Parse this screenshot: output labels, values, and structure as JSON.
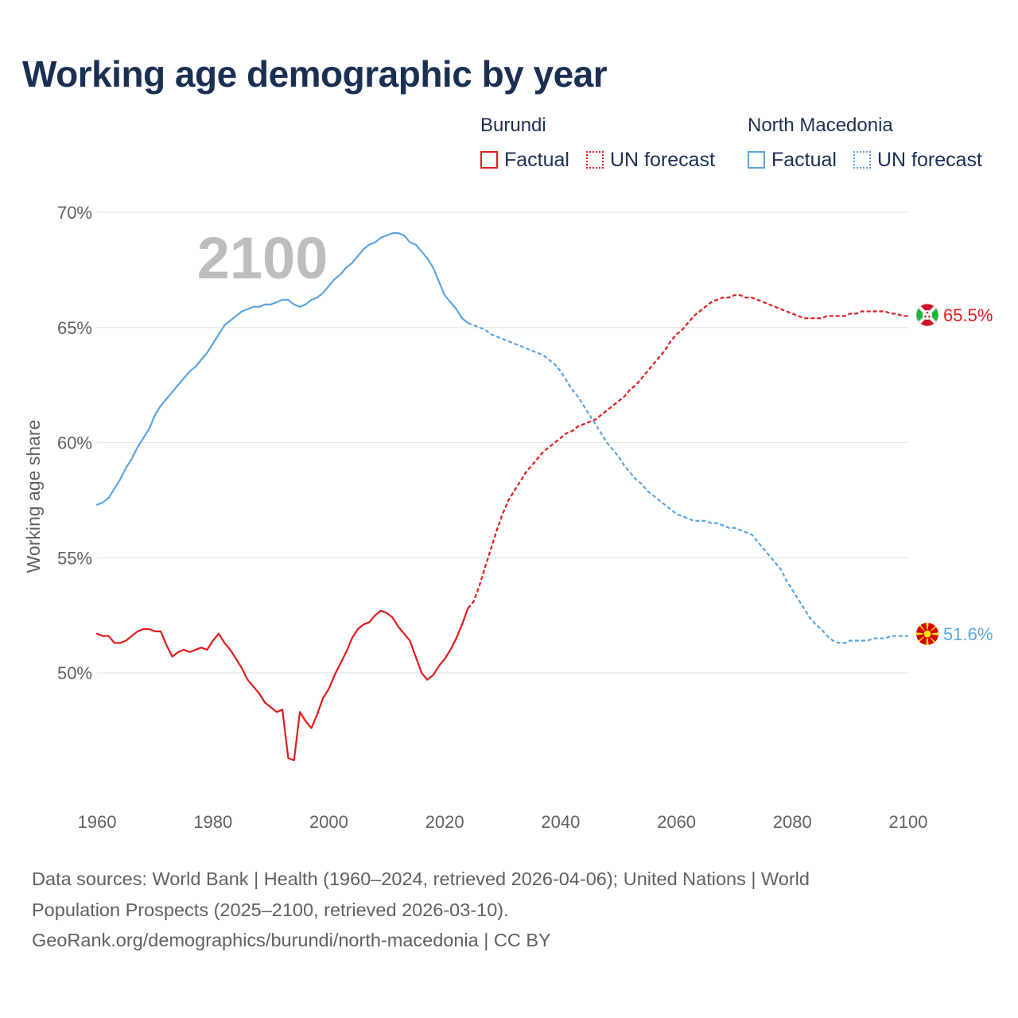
{
  "title": "Working age demographic by year",
  "year_label": "2100",
  "legend": [
    {
      "country": "Burundi",
      "color": "#e41a1c",
      "items": [
        {
          "label": "Factual",
          "style": "solid"
        },
        {
          "label": "UN forecast",
          "style": "dotted"
        }
      ]
    },
    {
      "country": "North Macedonia",
      "color": "#5ba4e2",
      "items": [
        {
          "label": "Factual",
          "style": "solid"
        },
        {
          "label": "UN forecast",
          "style": "dotted"
        }
      ]
    }
  ],
  "footer": {
    "line1": "Data sources: World Bank | Health (1960–2024, retrieved 2026-04-06); United Nations | World",
    "line2": "Population Prospects (2025–2100, retrieved 2026-03-10).",
    "line3": "GeoRank.org/demographics/burundi/north-macedonia | CC BY"
  },
  "chart_data": {
    "type": "line",
    "title": "Working age demographic by year",
    "xlabel": "",
    "ylabel": "Working age share",
    "xlim": [
      1960,
      2100
    ],
    "ylim": [
      44.5,
      70
    ],
    "x_ticks": [
      1960,
      1980,
      2000,
      2020,
      2040,
      2060,
      2080,
      2100
    ],
    "y_ticks": [
      50,
      55,
      60,
      65,
      70
    ],
    "y_tick_labels": [
      "50%",
      "55%",
      "60%",
      "65%",
      "70%"
    ],
    "grid": true,
    "series": [
      {
        "name": "Burundi",
        "color": "#e41a1c",
        "end_label": "65.5%",
        "end_icon": "burundi-flag",
        "factual": [
          [
            1960,
            51.7
          ],
          [
            1961,
            51.6
          ],
          [
            1962,
            51.6
          ],
          [
            1963,
            51.3
          ],
          [
            1964,
            51.3
          ],
          [
            1965,
            51.4
          ],
          [
            1966,
            51.6
          ],
          [
            1967,
            51.8
          ],
          [
            1968,
            51.9
          ],
          [
            1969,
            51.9
          ],
          [
            1970,
            51.8
          ],
          [
            1971,
            51.8
          ],
          [
            1972,
            51.2
          ],
          [
            1973,
            50.7
          ],
          [
            1974,
            50.9
          ],
          [
            1975,
            51.0
          ],
          [
            1976,
            50.9
          ],
          [
            1977,
            51.0
          ],
          [
            1978,
            51.1
          ],
          [
            1979,
            51.0
          ],
          [
            1980,
            51.4
          ],
          [
            1981,
            51.7
          ],
          [
            1982,
            51.3
          ],
          [
            1983,
            51.0
          ],
          [
            1984,
            50.6
          ],
          [
            1985,
            50.2
          ],
          [
            1986,
            49.7
          ],
          [
            1987,
            49.4
          ],
          [
            1988,
            49.1
          ],
          [
            1989,
            48.7
          ],
          [
            1990,
            48.5
          ],
          [
            1991,
            48.3
          ],
          [
            1992,
            48.4
          ],
          [
            1993,
            46.3
          ],
          [
            1994,
            46.2
          ],
          [
            1995,
            48.3
          ],
          [
            1996,
            47.9
          ],
          [
            1997,
            47.6
          ],
          [
            1998,
            48.2
          ],
          [
            1999,
            48.9
          ],
          [
            2000,
            49.3
          ],
          [
            2001,
            49.9
          ],
          [
            2002,
            50.4
          ],
          [
            2003,
            50.9
          ],
          [
            2004,
            51.5
          ],
          [
            2005,
            51.9
          ],
          [
            2006,
            52.1
          ],
          [
            2007,
            52.2
          ],
          [
            2008,
            52.5
          ],
          [
            2009,
            52.7
          ],
          [
            2010,
            52.6
          ],
          [
            2011,
            52.4
          ],
          [
            2012,
            52.0
          ],
          [
            2013,
            51.7
          ],
          [
            2014,
            51.4
          ],
          [
            2015,
            50.7
          ],
          [
            2016,
            50.0
          ],
          [
            2017,
            49.7
          ],
          [
            2018,
            49.9
          ],
          [
            2019,
            50.3
          ],
          [
            2020,
            50.6
          ],
          [
            2021,
            51.0
          ],
          [
            2022,
            51.5
          ],
          [
            2023,
            52.1
          ],
          [
            2024,
            52.8
          ]
        ],
        "forecast": [
          [
            2024,
            52.8
          ],
          [
            2025,
            53.1
          ],
          [
            2026,
            53.8
          ],
          [
            2027,
            54.6
          ],
          [
            2028,
            55.4
          ],
          [
            2029,
            56.2
          ],
          [
            2030,
            56.9
          ],
          [
            2031,
            57.5
          ],
          [
            2032,
            57.9
          ],
          [
            2033,
            58.3
          ],
          [
            2034,
            58.7
          ],
          [
            2035,
            59.0
          ],
          [
            2036,
            59.3
          ],
          [
            2037,
            59.6
          ],
          [
            2038,
            59.8
          ],
          [
            2039,
            60.0
          ],
          [
            2040,
            60.2
          ],
          [
            2041,
            60.4
          ],
          [
            2042,
            60.5
          ],
          [
            2043,
            60.7
          ],
          [
            2044,
            60.8
          ],
          [
            2045,
            60.9
          ],
          [
            2046,
            61.0
          ],
          [
            2047,
            61.2
          ],
          [
            2048,
            61.4
          ],
          [
            2049,
            61.6
          ],
          [
            2050,
            61.8
          ],
          [
            2051,
            62.0
          ],
          [
            2052,
            62.3
          ],
          [
            2053,
            62.5
          ],
          [
            2054,
            62.8
          ],
          [
            2055,
            63.1
          ],
          [
            2056,
            63.4
          ],
          [
            2057,
            63.7
          ],
          [
            2058,
            64.0
          ],
          [
            2059,
            64.4
          ],
          [
            2060,
            64.7
          ],
          [
            2061,
            64.9
          ],
          [
            2062,
            65.2
          ],
          [
            2063,
            65.5
          ],
          [
            2064,
            65.7
          ],
          [
            2065,
            65.9
          ],
          [
            2066,
            66.1
          ],
          [
            2067,
            66.2
          ],
          [
            2068,
            66.3
          ],
          [
            2069,
            66.3
          ],
          [
            2070,
            66.4
          ],
          [
            2071,
            66.4
          ],
          [
            2072,
            66.3
          ],
          [
            2073,
            66.3
          ],
          [
            2074,
            66.2
          ],
          [
            2075,
            66.1
          ],
          [
            2076,
            66.0
          ],
          [
            2077,
            65.9
          ],
          [
            2078,
            65.8
          ],
          [
            2079,
            65.7
          ],
          [
            2080,
            65.6
          ],
          [
            2081,
            65.5
          ],
          [
            2082,
            65.4
          ],
          [
            2083,
            65.4
          ],
          [
            2084,
            65.4
          ],
          [
            2085,
            65.4
          ],
          [
            2086,
            65.5
          ],
          [
            2087,
            65.5
          ],
          [
            2088,
            65.5
          ],
          [
            2089,
            65.5
          ],
          [
            2090,
            65.6
          ],
          [
            2091,
            65.6
          ],
          [
            2092,
            65.7
          ],
          [
            2093,
            65.7
          ],
          [
            2094,
            65.7
          ],
          [
            2095,
            65.7
          ],
          [
            2096,
            65.7
          ],
          [
            2097,
            65.6
          ],
          [
            2098,
            65.6
          ],
          [
            2099,
            65.5
          ],
          [
            2100,
            65.5
          ]
        ]
      },
      {
        "name": "North Macedonia",
        "color": "#5ba4e2",
        "end_label": "51.6%",
        "end_icon": "north-macedonia-flag",
        "factual": [
          [
            1960,
            57.3
          ],
          [
            1961,
            57.4
          ],
          [
            1962,
            57.6
          ],
          [
            1963,
            58.0
          ],
          [
            1964,
            58.4
          ],
          [
            1965,
            58.9
          ],
          [
            1966,
            59.3
          ],
          [
            1967,
            59.8
          ],
          [
            1968,
            60.2
          ],
          [
            1969,
            60.6
          ],
          [
            1970,
            61.2
          ],
          [
            1971,
            61.6
          ],
          [
            1972,
            61.9
          ],
          [
            1973,
            62.2
          ],
          [
            1974,
            62.5
          ],
          [
            1975,
            62.8
          ],
          [
            1976,
            63.1
          ],
          [
            1977,
            63.3
          ],
          [
            1978,
            63.6
          ],
          [
            1979,
            63.9
          ],
          [
            1980,
            64.3
          ],
          [
            1981,
            64.7
          ],
          [
            1982,
            65.1
          ],
          [
            1983,
            65.3
          ],
          [
            1984,
            65.5
          ],
          [
            1985,
            65.7
          ],
          [
            1986,
            65.8
          ],
          [
            1987,
            65.9
          ],
          [
            1988,
            65.9
          ],
          [
            1989,
            66.0
          ],
          [
            1990,
            66.0
          ],
          [
            1991,
            66.1
          ],
          [
            1992,
            66.2
          ],
          [
            1993,
            66.2
          ],
          [
            1994,
            66.0
          ],
          [
            1995,
            65.9
          ],
          [
            1996,
            66.0
          ],
          [
            1997,
            66.2
          ],
          [
            1998,
            66.3
          ],
          [
            1999,
            66.5
          ],
          [
            2000,
            66.8
          ],
          [
            2001,
            67.1
          ],
          [
            2002,
            67.3
          ],
          [
            2003,
            67.6
          ],
          [
            2004,
            67.8
          ],
          [
            2005,
            68.1
          ],
          [
            2006,
            68.4
          ],
          [
            2007,
            68.6
          ],
          [
            2008,
            68.7
          ],
          [
            2009,
            68.9
          ],
          [
            2010,
            69.0
          ],
          [
            2011,
            69.1
          ],
          [
            2012,
            69.1
          ],
          [
            2013,
            69.0
          ],
          [
            2014,
            68.7
          ],
          [
            2015,
            68.6
          ],
          [
            2016,
            68.3
          ],
          [
            2017,
            68.0
          ],
          [
            2018,
            67.6
          ],
          [
            2019,
            67.0
          ],
          [
            2020,
            66.4
          ],
          [
            2021,
            66.1
          ],
          [
            2022,
            65.8
          ],
          [
            2023,
            65.4
          ],
          [
            2024,
            65.2
          ]
        ],
        "forecast": [
          [
            2024,
            65.2
          ],
          [
            2025,
            65.1
          ],
          [
            2026,
            65.0
          ],
          [
            2027,
            64.9
          ],
          [
            2028,
            64.7
          ],
          [
            2029,
            64.6
          ],
          [
            2030,
            64.5
          ],
          [
            2031,
            64.4
          ],
          [
            2032,
            64.3
          ],
          [
            2033,
            64.2
          ],
          [
            2034,
            64.1
          ],
          [
            2035,
            64.0
          ],
          [
            2036,
            63.9
          ],
          [
            2037,
            63.8
          ],
          [
            2038,
            63.6
          ],
          [
            2039,
            63.4
          ],
          [
            2040,
            63.1
          ],
          [
            2041,
            62.7
          ],
          [
            2042,
            62.3
          ],
          [
            2043,
            62.0
          ],
          [
            2044,
            61.6
          ],
          [
            2045,
            61.2
          ],
          [
            2046,
            60.8
          ],
          [
            2047,
            60.4
          ],
          [
            2048,
            60.0
          ],
          [
            2049,
            59.7
          ],
          [
            2050,
            59.4
          ],
          [
            2051,
            59.0
          ],
          [
            2052,
            58.7
          ],
          [
            2053,
            58.4
          ],
          [
            2054,
            58.2
          ],
          [
            2055,
            57.9
          ],
          [
            2056,
            57.7
          ],
          [
            2057,
            57.5
          ],
          [
            2058,
            57.3
          ],
          [
            2059,
            57.1
          ],
          [
            2060,
            56.9
          ],
          [
            2061,
            56.8
          ],
          [
            2062,
            56.7
          ],
          [
            2063,
            56.6
          ],
          [
            2064,
            56.6
          ],
          [
            2065,
            56.6
          ],
          [
            2066,
            56.5
          ],
          [
            2067,
            56.5
          ],
          [
            2068,
            56.4
          ],
          [
            2069,
            56.3
          ],
          [
            2070,
            56.3
          ],
          [
            2071,
            56.2
          ],
          [
            2072,
            56.1
          ],
          [
            2073,
            56.0
          ],
          [
            2074,
            55.7
          ],
          [
            2075,
            55.4
          ],
          [
            2076,
            55.1
          ],
          [
            2077,
            54.8
          ],
          [
            2078,
            54.5
          ],
          [
            2079,
            54.0
          ],
          [
            2080,
            53.6
          ],
          [
            2081,
            53.2
          ],
          [
            2082,
            52.8
          ],
          [
            2083,
            52.4
          ],
          [
            2084,
            52.1
          ],
          [
            2085,
            51.9
          ],
          [
            2086,
            51.6
          ],
          [
            2087,
            51.4
          ],
          [
            2088,
            51.3
          ],
          [
            2089,
            51.3
          ],
          [
            2090,
            51.4
          ],
          [
            2091,
            51.4
          ],
          [
            2092,
            51.4
          ],
          [
            2093,
            51.4
          ],
          [
            2094,
            51.5
          ],
          [
            2095,
            51.5
          ],
          [
            2096,
            51.5
          ],
          [
            2097,
            51.6
          ],
          [
            2098,
            51.6
          ],
          [
            2099,
            51.6
          ],
          [
            2100,
            51.6
          ]
        ]
      }
    ]
  }
}
